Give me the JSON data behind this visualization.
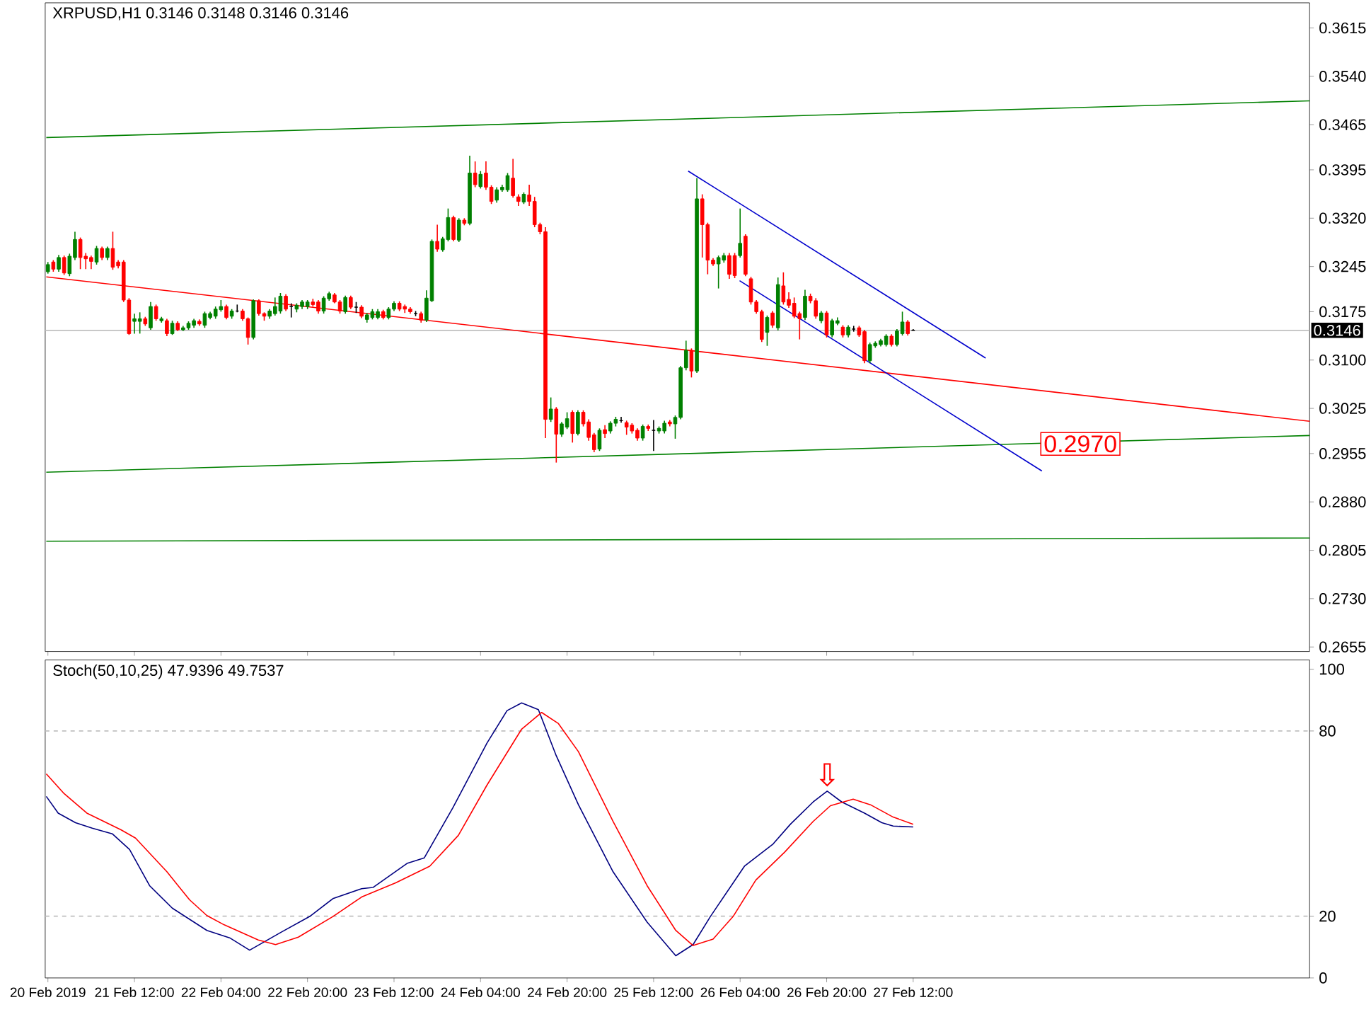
{
  "chart_data": [
    {
      "type": "candlestick",
      "title": "XRPUSD,H1 0.3146 0.3148 0.3146 0.3146",
      "x": [
        "2019-02-20T20:00",
        "2019-02-20T21:00",
        "2019-02-20T22:00",
        "2019-02-20T23:00",
        "2019-02-21T00:00",
        "2019-02-21T01:00",
        "2019-02-21T02:00",
        "2019-02-21T03:00",
        "2019-02-21T04:00",
        "2019-02-21T05:00",
        "2019-02-21T06:00",
        "2019-02-21T07:00",
        "2019-02-21T08:00",
        "2019-02-21T09:00",
        "2019-02-21T10:00",
        "2019-02-21T11:00",
        "2019-02-21T12:00",
        "2019-02-21T13:00",
        "2019-02-21T14:00",
        "2019-02-21T15:00",
        "2019-02-21T16:00",
        "2019-02-21T17:00",
        "2019-02-21T18:00",
        "2019-02-21T19:00",
        "2019-02-21T20:00",
        "2019-02-21T21:00",
        "2019-02-21T22:00",
        "2019-02-21T23:00",
        "2019-02-22T00:00",
        "2019-02-22T01:00",
        "2019-02-22T02:00",
        "2019-02-22T03:00",
        "2019-02-22T04:00",
        "2019-02-22T05:00",
        "2019-02-22T06:00",
        "2019-02-22T07:00",
        "2019-02-22T08:00",
        "2019-02-22T09:00",
        "2019-02-22T10:00",
        "2019-02-22T11:00",
        "2019-02-22T12:00",
        "2019-02-22T13:00",
        "2019-02-22T14:00",
        "2019-02-22T15:00",
        "2019-02-22T16:00",
        "2019-02-22T17:00",
        "2019-02-22T18:00",
        "2019-02-22T19:00",
        "2019-02-22T20:00",
        "2019-02-22T21:00",
        "2019-02-22T22:00",
        "2019-02-22T23:00",
        "2019-02-23T00:00",
        "2019-02-23T01:00",
        "2019-02-23T02:00",
        "2019-02-23T03:00",
        "2019-02-23T04:00",
        "2019-02-23T05:00",
        "2019-02-23T06:00",
        "2019-02-23T07:00",
        "2019-02-23T08:00",
        "2019-02-23T09:00",
        "2019-02-23T10:00",
        "2019-02-23T11:00",
        "2019-02-23T12:00",
        "2019-02-23T13:00",
        "2019-02-23T14:00",
        "2019-02-23T15:00",
        "2019-02-23T16:00",
        "2019-02-23T17:00",
        "2019-02-23T18:00",
        "2019-02-23T19:00",
        "2019-02-23T20:00",
        "2019-02-23T21:00",
        "2019-02-23T22:00",
        "2019-02-23T23:00",
        "2019-02-24T00:00",
        "2019-02-24T01:00",
        "2019-02-24T02:00",
        "2019-02-24T03:00",
        "2019-02-24T04:00",
        "2019-02-24T05:00",
        "2019-02-24T06:00",
        "2019-02-24T07:00",
        "2019-02-24T08:00",
        "2019-02-24T09:00",
        "2019-02-24T10:00",
        "2019-02-24T11:00",
        "2019-02-24T12:00",
        "2019-02-24T13:00",
        "2019-02-24T14:00",
        "2019-02-24T15:00",
        "2019-02-24T16:00",
        "2019-02-24T17:00",
        "2019-02-24T18:00",
        "2019-02-24T19:00",
        "2019-02-24T20:00",
        "2019-02-24T21:00",
        "2019-02-24T22:00",
        "2019-02-24T23:00",
        "2019-02-25T00:00",
        "2019-02-25T01:00",
        "2019-02-25T02:00",
        "2019-02-25T03:00",
        "2019-02-25T04:00",
        "2019-02-25T05:00",
        "2019-02-25T06:00",
        "2019-02-25T07:00",
        "2019-02-25T08:00",
        "2019-02-25T09:00",
        "2019-02-25T10:00",
        "2019-02-25T11:00",
        "2019-02-25T12:00",
        "2019-02-25T13:00",
        "2019-02-25T14:00",
        "2019-02-25T15:00",
        "2019-02-25T16:00",
        "2019-02-25T17:00",
        "2019-02-25T18:00",
        "2019-02-25T19:00",
        "2019-02-25T20:00",
        "2019-02-25T21:00",
        "2019-02-25T22:00",
        "2019-02-25T23:00",
        "2019-02-26T00:00",
        "2019-02-26T01:00",
        "2019-02-26T02:00",
        "2019-02-26T03:00",
        "2019-02-26T04:00",
        "2019-02-26T05:00",
        "2019-02-26T06:00",
        "2019-02-26T07:00",
        "2019-02-26T08:00",
        "2019-02-26T09:00",
        "2019-02-26T10:00",
        "2019-02-26T11:00",
        "2019-02-26T12:00",
        "2019-02-26T13:00",
        "2019-02-26T14:00",
        "2019-02-26T15:00",
        "2019-02-26T16:00",
        "2019-02-26T17:00",
        "2019-02-26T18:00",
        "2019-02-26T19:00",
        "2019-02-26T20:00",
        "2019-02-26T21:00",
        "2019-02-26T22:00",
        "2019-02-26T23:00",
        "2019-02-27T00:00",
        "2019-02-27T01:00",
        "2019-02-27T02:00",
        "2019-02-27T03:00",
        "2019-02-27T04:00",
        "2019-02-27T05:00",
        "2019-02-27T06:00",
        "2019-02-27T07:00",
        "2019-02-27T08:00",
        "2019-02-27T09:00",
        "2019-02-27T10:00",
        "2019-02-27T11:00",
        "2019-02-27T12:00"
      ],
      "ohlc": [
        [
          0.3237,
          0.3252,
          0.3234,
          0.3248
        ],
        [
          0.3252,
          0.3255,
          0.3237,
          0.3241
        ],
        [
          0.3241,
          0.3263,
          0.3237,
          0.3259
        ],
        [
          0.3259,
          0.3262,
          0.3232,
          0.3235
        ],
        [
          0.3234,
          0.3265,
          0.323,
          0.3261
        ],
        [
          0.3259,
          0.3299,
          0.3255,
          0.3287
        ],
        [
          0.3287,
          0.329,
          0.3241,
          0.3259
        ],
        [
          0.3261,
          0.3266,
          0.3241,
          0.3257
        ],
        [
          0.3259,
          0.3262,
          0.3241,
          0.3253
        ],
        [
          0.3252,
          0.3277,
          0.3248,
          0.3273
        ],
        [
          0.3273,
          0.3276,
          0.3255,
          0.3259
        ],
        [
          0.3259,
          0.3276,
          0.3255,
          0.3273
        ],
        [
          0.3273,
          0.3299,
          0.324,
          0.3244
        ],
        [
          0.3252,
          0.3255,
          0.3242,
          0.3246
        ],
        [
          0.3252,
          0.3255,
          0.319,
          0.3193
        ],
        [
          0.3193,
          0.3196,
          0.3139,
          0.3141
        ],
        [
          0.316,
          0.3172,
          0.3141,
          0.3164
        ],
        [
          0.316,
          0.3174,
          0.3141,
          0.3164
        ],
        [
          0.3164,
          0.3167,
          0.3153,
          0.3156
        ],
        [
          0.315,
          0.319,
          0.3147,
          0.3183
        ],
        [
          0.3183,
          0.3186,
          0.3161,
          0.3164
        ],
        [
          0.3161,
          0.3167,
          0.3158,
          0.3164
        ],
        [
          0.3161,
          0.3164,
          0.3137,
          0.3141
        ],
        [
          0.3141,
          0.3161,
          0.3139,
          0.3157
        ],
        [
          0.3157,
          0.316,
          0.3145,
          0.3147
        ],
        [
          0.3147,
          0.3153,
          0.3145,
          0.315
        ],
        [
          0.315,
          0.316,
          0.3147,
          0.3157
        ],
        [
          0.3154,
          0.3164,
          0.315,
          0.3161
        ],
        [
          0.316,
          0.3163,
          0.3153,
          0.3156
        ],
        [
          0.3154,
          0.3175,
          0.315,
          0.3172
        ],
        [
          0.3166,
          0.3175,
          0.3163,
          0.3172
        ],
        [
          0.3168,
          0.3183,
          0.3164,
          0.3179
        ],
        [
          0.3178,
          0.3193,
          0.3175,
          0.3183
        ],
        [
          0.3183,
          0.3186,
          0.3163,
          0.3166
        ],
        [
          0.3168,
          0.3179,
          0.3164,
          0.3176
        ],
        [
          0.3176,
          0.3186,
          0.3174,
          0.3176
        ],
        [
          0.3176,
          0.3179,
          0.3161,
          0.3164
        ],
        [
          0.3164,
          0.3166,
          0.3124,
          0.3135
        ],
        [
          0.3135,
          0.3194,
          0.3132,
          0.3192
        ],
        [
          0.3192,
          0.3194,
          0.3169,
          0.3172
        ],
        [
          0.3172,
          0.3174,
          0.3161,
          0.3168
        ],
        [
          0.3168,
          0.3179,
          0.3164,
          0.3176
        ],
        [
          0.3172,
          0.3197,
          0.3169,
          0.3183
        ],
        [
          0.3176,
          0.3204,
          0.3172,
          0.3199
        ],
        [
          0.3199,
          0.3202,
          0.3176,
          0.3179
        ],
        [
          0.3183,
          0.3188,
          0.3166,
          0.3183
        ],
        [
          0.3179,
          0.3188,
          0.3174,
          0.3185
        ],
        [
          0.3183,
          0.3193,
          0.3179,
          0.319
        ],
        [
          0.3183,
          0.3193,
          0.3179,
          0.319
        ],
        [
          0.319,
          0.3195,
          0.3183,
          0.3186
        ],
        [
          0.319,
          0.3193,
          0.3172,
          0.3176
        ],
        [
          0.3176,
          0.3199,
          0.3172,
          0.3196
        ],
        [
          0.3195,
          0.3206,
          0.3192,
          0.3203
        ],
        [
          0.3201,
          0.3204,
          0.3188,
          0.319
        ],
        [
          0.319,
          0.3193,
          0.3172,
          0.3176
        ],
        [
          0.3175,
          0.32,
          0.3172,
          0.3197
        ],
        [
          0.3197,
          0.32,
          0.3179,
          0.3182
        ],
        [
          0.3182,
          0.319,
          0.3173,
          0.3182
        ],
        [
          0.3182,
          0.3185,
          0.3165,
          0.3168
        ],
        [
          0.3163,
          0.3173,
          0.3158,
          0.317
        ],
        [
          0.3166,
          0.3179,
          0.3163,
          0.3175
        ],
        [
          0.3166,
          0.3179,
          0.3163,
          0.3175
        ],
        [
          0.3175,
          0.3178,
          0.3163,
          0.3166
        ],
        [
          0.3166,
          0.3182,
          0.3163,
          0.3179
        ],
        [
          0.3179,
          0.3191,
          0.3176,
          0.3188
        ],
        [
          0.3188,
          0.3191,
          0.3176,
          0.3179
        ],
        [
          0.3183,
          0.3186,
          0.3173,
          0.3179
        ],
        [
          0.3179,
          0.3182,
          0.3172,
          0.3175
        ],
        [
          0.3172,
          0.3176,
          0.3168,
          0.3172
        ],
        [
          0.3172,
          0.3175,
          0.3158,
          0.3162
        ],
        [
          0.3162,
          0.3208,
          0.3159,
          0.3196
        ],
        [
          0.3192,
          0.3287,
          0.319,
          0.3284
        ],
        [
          0.3284,
          0.331,
          0.3268,
          0.3272
        ],
        [
          0.3271,
          0.3291,
          0.3268,
          0.3288
        ],
        [
          0.3287,
          0.3335,
          0.3284,
          0.3321
        ],
        [
          0.3321,
          0.3324,
          0.3284,
          0.3287
        ],
        [
          0.3286,
          0.332,
          0.3283,
          0.3317
        ],
        [
          0.3317,
          0.332,
          0.3309,
          0.3312
        ],
        [
          0.3312,
          0.3417,
          0.3309,
          0.339
        ],
        [
          0.339,
          0.3408,
          0.3368,
          0.3372
        ],
        [
          0.3369,
          0.3393,
          0.3366,
          0.3388
        ],
        [
          0.339,
          0.3408,
          0.3364,
          0.3368
        ],
        [
          0.3368,
          0.3371,
          0.3342,
          0.3346
        ],
        [
          0.3348,
          0.3368,
          0.3344,
          0.3364
        ],
        [
          0.3364,
          0.3372,
          0.3361,
          0.3368
        ],
        [
          0.3364,
          0.339,
          0.3361,
          0.3386
        ],
        [
          0.3382,
          0.3412,
          0.3352,
          0.3355
        ],
        [
          0.3353,
          0.3357,
          0.3339,
          0.3346
        ],
        [
          0.3345,
          0.336,
          0.3342,
          0.3357
        ],
        [
          0.3356,
          0.3372,
          0.3339,
          0.3346
        ],
        [
          0.3346,
          0.3353,
          0.3306,
          0.331
        ],
        [
          0.331,
          0.3313,
          0.3295,
          0.3299
        ],
        [
          0.3299,
          0.3306,
          0.2979,
          0.3008
        ],
        [
          0.3008,
          0.3042,
          0.3004,
          0.3024
        ],
        [
          0.3024,
          0.3027,
          0.2941,
          0.2985
        ],
        [
          0.2985,
          0.3004,
          0.2981,
          0.3001
        ],
        [
          0.2996,
          0.3019,
          0.2993,
          0.3009
        ],
        [
          0.3019,
          0.3022,
          0.2972,
          0.2986
        ],
        [
          0.2986,
          0.3022,
          0.2983,
          0.3019
        ],
        [
          0.3019,
          0.3022,
          0.2997,
          0.3001
        ],
        [
          0.3004,
          0.3008,
          0.2975,
          0.298
        ],
        [
          0.2984,
          0.2987,
          0.2957,
          0.2961
        ],
        [
          0.2962,
          0.2994,
          0.2959,
          0.2991
        ],
        [
          0.2992,
          0.2999,
          0.2979,
          0.2986
        ],
        [
          0.299,
          0.3005,
          0.2986,
          0.3002
        ],
        [
          0.3002,
          0.3012,
          0.2997,
          0.3008
        ],
        [
          0.3006,
          0.3012,
          0.3003,
          0.3006
        ],
        [
          0.3003,
          0.3006,
          0.2984,
          0.2996
        ],
        [
          0.2999,
          0.3002,
          0.2986,
          0.299
        ],
        [
          0.2991,
          0.2994,
          0.2975,
          0.2979
        ],
        [
          0.2979,
          0.3,
          0.2975,
          0.2997
        ],
        [
          0.2997,
          0.3,
          0.299,
          0.2994
        ],
        [
          0.2991,
          0.3007,
          0.2959,
          0.2991
        ],
        [
          0.299,
          0.2997,
          0.2986,
          0.2994
        ],
        [
          0.299,
          0.3006,
          0.2986,
          0.3002
        ],
        [
          0.3004,
          0.3007,
          0.2997,
          0.3001
        ],
        [
          0.3001,
          0.3014,
          0.2978,
          0.3011
        ],
        [
          0.3011,
          0.3091,
          0.3008,
          0.3088
        ],
        [
          0.3088,
          0.313,
          0.3084,
          0.3115
        ],
        [
          0.3115,
          0.3118,
          0.3073,
          0.3083
        ],
        [
          0.3083,
          0.3382,
          0.308,
          0.335
        ],
        [
          0.335,
          0.3357,
          0.3259,
          0.331
        ],
        [
          0.331,
          0.3313,
          0.3233,
          0.3255
        ],
        [
          0.3255,
          0.3258,
          0.3246,
          0.3249
        ],
        [
          0.3249,
          0.3262,
          0.3211,
          0.3259
        ],
        [
          0.3255,
          0.3266,
          0.3251,
          0.3262
        ],
        [
          0.3262,
          0.3266,
          0.3226,
          0.3233
        ],
        [
          0.3262,
          0.3266,
          0.3227,
          0.3231
        ],
        [
          0.3262,
          0.3335,
          0.3259,
          0.3281
        ],
        [
          0.3292,
          0.3295,
          0.323,
          0.3233
        ],
        [
          0.3226,
          0.3229,
          0.3186,
          0.319
        ],
        [
          0.319,
          0.3193,
          0.3172,
          0.3175
        ],
        [
          0.3175,
          0.3178,
          0.3128,
          0.3132
        ],
        [
          0.3143,
          0.3169,
          0.3122,
          0.3166
        ],
        [
          0.3173,
          0.3176,
          0.315,
          0.3154
        ],
        [
          0.315,
          0.3228,
          0.3146,
          0.3217
        ],
        [
          0.3215,
          0.3236,
          0.3186,
          0.319
        ],
        [
          0.3194,
          0.3205,
          0.3181,
          0.3185
        ],
        [
          0.3188,
          0.3197,
          0.3165,
          0.3168
        ],
        [
          0.3172,
          0.3175,
          0.3132,
          0.3164
        ],
        [
          0.3166,
          0.3209,
          0.3162,
          0.3199
        ],
        [
          0.3199,
          0.3203,
          0.3188,
          0.3192
        ],
        [
          0.3192,
          0.3196,
          0.3164,
          0.3168
        ],
        [
          0.3161,
          0.3176,
          0.3157,
          0.3173
        ],
        [
          0.3173,
          0.3176,
          0.3135,
          0.3139
        ],
        [
          0.3139,
          0.3164,
          0.3135,
          0.3161
        ],
        [
          0.3157,
          0.3166,
          0.3154,
          0.3161
        ],
        [
          0.3151,
          0.3154,
          0.3135,
          0.3139
        ],
        [
          0.3139,
          0.3154,
          0.3135,
          0.3151
        ],
        [
          0.3148,
          0.3153,
          0.3144,
          0.3148
        ],
        [
          0.315,
          0.3153,
          0.3136,
          0.3139
        ],
        [
          0.3144,
          0.3147,
          0.3095,
          0.3099
        ],
        [
          0.3099,
          0.3127,
          0.3095,
          0.3124
        ],
        [
          0.3122,
          0.3129,
          0.3119,
          0.3126
        ],
        [
          0.3124,
          0.3133,
          0.3121,
          0.313
        ],
        [
          0.3124,
          0.314,
          0.3121,
          0.3137
        ],
        [
          0.3137,
          0.314,
          0.3121,
          0.3124
        ],
        [
          0.3124,
          0.3148,
          0.3121,
          0.3145
        ],
        [
          0.3141,
          0.3175,
          0.3138,
          0.3159
        ],
        [
          0.3159,
          0.3162,
          0.3138,
          0.3141
        ],
        [
          0.3146,
          0.3148,
          0.3146,
          0.3146
        ]
      ],
      "colors": [
        "#008000",
        "#ff0000",
        "#008000",
        "#ff0000",
        "#008000",
        "#008000",
        "#ff0000",
        "#ff0000",
        "#ff0000",
        "#008000",
        "#ff0000",
        "#008000",
        "#ff0000",
        "#ff0000",
        "#ff0000",
        "#ff0000",
        "#008000",
        "#008000",
        "#ff0000",
        "#008000",
        "#ff0000",
        "#008000",
        "#ff0000",
        "#008000",
        "#ff0000",
        "#008000",
        "#008000",
        "#008000",
        "#ff0000",
        "#008000",
        "#008000",
        "#008000",
        "#008000",
        "#ff0000",
        "#008000",
        "#000000",
        "#ff0000",
        "#ff0000",
        "#008000",
        "#ff0000",
        "#ff0000",
        "#008000",
        "#008000",
        "#008000",
        "#ff0000",
        "#000000",
        "#008000",
        "#008000",
        "#008000",
        "#ff0000",
        "#ff0000",
        "#008000",
        "#008000",
        "#ff0000",
        "#ff0000",
        "#008000",
        "#ff0000",
        "#000000",
        "#ff0000",
        "#008000",
        "#008000",
        "#008000",
        "#ff0000",
        "#008000",
        "#008000",
        "#ff0000",
        "#ff0000",
        "#ff0000",
        "#000000",
        "#ff0000",
        "#008000",
        "#008000",
        "#ff0000",
        "#008000",
        "#008000",
        "#ff0000",
        "#008000",
        "#ff0000",
        "#008000",
        "#ff0000",
        "#008000",
        "#ff0000",
        "#ff0000",
        "#008000",
        "#008000",
        "#008000",
        "#ff0000",
        "#ff0000",
        "#008000",
        "#ff0000",
        "#ff0000",
        "#ff0000",
        "#ff0000",
        "#008000",
        "#ff0000",
        "#008000",
        "#008000",
        "#ff0000",
        "#008000",
        "#ff0000",
        "#ff0000",
        "#ff0000",
        "#008000",
        "#ff0000",
        "#008000",
        "#008000",
        "#000000",
        "#ff0000",
        "#ff0000",
        "#ff0000",
        "#008000",
        "#ff0000",
        "#000000",
        "#008000",
        "#008000",
        "#ff0000",
        "#008000",
        "#008000",
        "#008000",
        "#ff0000",
        "#008000",
        "#ff0000",
        "#ff0000",
        "#ff0000",
        "#008000",
        "#008000",
        "#ff0000",
        "#ff0000",
        "#008000",
        "#ff0000",
        "#ff0000",
        "#ff0000",
        "#ff0000",
        "#008000",
        "#ff0000",
        "#008000",
        "#ff0000",
        "#ff0000",
        "#ff0000",
        "#ff0000",
        "#008000",
        "#ff0000",
        "#ff0000",
        "#008000",
        "#ff0000",
        "#008000",
        "#008000",
        "#ff0000",
        "#008000",
        "#000000",
        "#ff0000",
        "#ff0000",
        "#008000",
        "#008000",
        "#008000",
        "#008000",
        "#ff0000",
        "#008000",
        "#008000",
        "#ff0000",
        "#000000"
      ],
      "series": [
        {
          "type": "line",
          "color": "#008000",
          "x": [
            "2019-02-20T19:42",
            "2019-03-02T13:18"
          ],
          "values": [
            0.3445,
            0.3502
          ]
        },
        {
          "type": "line",
          "color": "#ff0000",
          "x": [
            "2019-02-20T19:42",
            "2019-03-02T13:18"
          ],
          "values": [
            0.3229,
            0.3005
          ]
        },
        {
          "type": "line",
          "color": "#008000",
          "x": [
            "2019-02-20T19:42",
            "2019-03-02T13:18"
          ],
          "values": [
            0.2926,
            0.2983
          ]
        },
        {
          "type": "line",
          "color": "#008000",
          "x": [
            "2019-02-20T19:42",
            "2019-03-02T13:18"
          ],
          "values": [
            0.2819,
            0.2824
          ]
        },
        {
          "type": "line",
          "color": "#0000cd",
          "x": [
            "2019-02-25T18:24",
            "2019-02-28T01:24"
          ],
          "values": [
            0.3393,
            0.3103
          ]
        },
        {
          "type": "line",
          "color": "#0000cd",
          "x": [
            "2019-02-26T03:54",
            "2019-02-28T11:48"
          ],
          "values": [
            0.3223,
            0.2928
          ]
        }
      ],
      "xlim": [
        "2019-02-20T19:30",
        "2019-03-02T13:18"
      ],
      "ylim": [
        0.2648,
        0.3654
      ],
      "yticks": [
        {
          "value": 0.2655,
          "label": "0.2655"
        },
        {
          "value": 0.273,
          "label": "0.2730"
        },
        {
          "value": 0.2805,
          "label": "0.2805"
        },
        {
          "value": 0.288,
          "label": "0.2880"
        },
        {
          "value": 0.2955,
          "label": "0.2955"
        },
        {
          "value": 0.3025,
          "label": "0.3025"
        },
        {
          "value": 0.31,
          "label": "0.3100"
        },
        {
          "value": 0.3175,
          "label": "0.3175"
        },
        {
          "value": 0.3245,
          "label": "0.3245"
        },
        {
          "value": 0.332,
          "label": "0.3320"
        },
        {
          "value": 0.3395,
          "label": "0.3395"
        },
        {
          "value": 0.3465,
          "label": "0.3465"
        },
        {
          "value": 0.354,
          "label": "0.3540"
        },
        {
          "value": 0.3615,
          "label": "0.3615"
        }
      ],
      "xticks": [
        {
          "value": "2019-02-20T20:00",
          "label": null
        },
        {
          "value": "2019-02-21T12:00",
          "label": null
        },
        {
          "value": "2019-02-22T04:00",
          "label": null
        },
        {
          "value": "2019-02-22T20:00",
          "label": null
        },
        {
          "value": "2019-02-23T12:00",
          "label": null
        },
        {
          "value": "2019-02-24T04:00",
          "label": null
        },
        {
          "value": "2019-02-24T20:00",
          "label": null
        },
        {
          "value": "2019-02-25T12:00",
          "label": null
        },
        {
          "value": "2019-02-26T04:00",
          "label": null
        },
        {
          "value": "2019-02-26T20:00",
          "label": null
        },
        {
          "value": "2019-02-27T12:00",
          "label": null
        }
      ],
      "tick_labels": "y",
      "ref_lines": [
        {
          "axis": "y",
          "value": 0.3146,
          "label": "0.3146",
          "color": "#c0c0c0",
          "line_style": "solid"
        }
      ],
      "annotations": [
        {
          "text": "0.2970",
          "x": "2019-02-28T11:30",
          "y": 0.297
        }
      ]
    },
    {
      "type": "line",
      "title": "Stoch(50,10,25) 47.9396 49.7537",
      "series": [
        {
          "color": "#000080",
          "x": [
            "2019-02-20T19:42",
            "2019-02-20T21:54",
            "2019-02-21T01:06",
            "2019-02-21T04:12",
            "2019-02-21T07:54",
            "2019-02-21T11:06",
            "2019-02-21T14:48",
            "2019-02-21T19:00",
            "2019-02-22T01:24",
            "2019-02-22T05:36",
            "2019-02-22T09:18",
            "2019-02-22T15:06",
            "2019-02-22T20:24",
            "2019-02-23T00:42",
            "2019-02-23T06:00",
            "2019-02-23T08:06",
            "2019-02-23T14:24",
            "2019-02-23T17:36",
            "2019-02-23T22:54",
            "2019-02-24T05:12",
            "2019-02-24T08:54",
            "2019-02-24T11:36",
            "2019-02-24T14:42",
            "2019-02-24T17:54",
            "2019-02-24T22:06",
            "2019-02-25T04:30",
            "2019-02-25T10:48",
            "2019-02-25T16:06",
            "2019-02-25T19:18",
            "2019-02-25T22:30",
            "2019-02-26T04:48",
            "2019-02-26T10:06",
            "2019-02-26T13:18",
            "2019-02-26T17:30",
            "2019-02-26T20:06",
            "2019-02-26T22:48",
            "2019-02-27T03:00",
            "2019-02-27T06:12",
            "2019-02-27T08:18",
            "2019-02-27T12:00"
          ],
          "values": [
            58.8,
            53.4,
            50.3,
            48.5,
            46.7,
            41.6,
            29.9,
            22.6,
            15.4,
            13.0,
            9.0,
            14.8,
            19.9,
            25.7,
            28.9,
            29.3,
            37.1,
            38.9,
            55.2,
            76.1,
            86.6,
            89.1,
            86.9,
            72.4,
            56.1,
            34.4,
            18.1,
            7.2,
            10.8,
            19.9,
            36.2,
            43.4,
            49.8,
            57.0,
            60.5,
            57.0,
            53.4,
            50.3,
            49.2,
            48.9
          ]
        },
        {
          "color": "#ff0000",
          "x": [
            "2019-02-20T19:42",
            "2019-02-20T23:00",
            "2019-02-21T03:12",
            "2019-02-21T09:30",
            "2019-02-21T12:12",
            "2019-02-21T18:00",
            "2019-02-21T22:12",
            "2019-02-22T01:24",
            "2019-02-22T04:36",
            "2019-02-22T10:54",
            "2019-02-22T14:06",
            "2019-02-22T18:18",
            "2019-02-23T00:42",
            "2019-02-23T06:00",
            "2019-02-23T12:18",
            "2019-02-23T18:36",
            "2019-02-23T23:54",
            "2019-02-24T05:12",
            "2019-02-24T11:36",
            "2019-02-24T15:18",
            "2019-02-24T18:24",
            "2019-02-24T22:06",
            "2019-02-25T04:30",
            "2019-02-25T10:48",
            "2019-02-25T16:06",
            "2019-02-25T19:18",
            "2019-02-25T23:00",
            "2019-02-26T02:42",
            "2019-02-26T06:54",
            "2019-02-26T12:12",
            "2019-02-26T17:30",
            "2019-02-26T20:42",
            "2019-02-27T00:54",
            "2019-02-27T04:06",
            "2019-02-27T08:18",
            "2019-02-27T12:00"
          ],
          "values": [
            66.1,
            59.7,
            53.4,
            48.0,
            45.3,
            34.4,
            25.3,
            20.2,
            17.2,
            12.3,
            10.8,
            13.2,
            19.9,
            26.2,
            30.8,
            36.2,
            46.2,
            62.5,
            80.6,
            86.0,
            82.4,
            73.3,
            50.7,
            29.9,
            15.4,
            10.5,
            12.6,
            19.9,
            31.7,
            40.7,
            50.7,
            55.8,
            57.9,
            56.1,
            52.1,
            49.8
          ]
        }
      ],
      "xlim": [
        "2019-02-20T19:30",
        "2019-03-02T13:18"
      ],
      "ylim": [
        0,
        103
      ],
      "xticks": [
        {
          "value": "2019-02-20T20:00",
          "label": "20 Feb 2019"
        },
        {
          "value": "2019-02-21T12:00",
          "label": "21 Feb 12:00"
        },
        {
          "value": "2019-02-22T04:00",
          "label": "22 Feb 04:00"
        },
        {
          "value": "2019-02-22T20:00",
          "label": "22 Feb 20:00"
        },
        {
          "value": "2019-02-23T12:00",
          "label": "23 Feb 12:00"
        },
        {
          "value": "2019-02-24T04:00",
          "label": "24 Feb 04:00"
        },
        {
          "value": "2019-02-24T20:00",
          "label": "24 Feb 20:00"
        },
        {
          "value": "2019-02-25T12:00",
          "label": "25 Feb 12:00"
        },
        {
          "value": "2019-02-26T04:00",
          "label": "26 Feb 04:00"
        },
        {
          "value": "2019-02-26T20:00",
          "label": "26 Feb 20:00"
        },
        {
          "value": "2019-02-27T12:00",
          "label": "27 Feb 12:00"
        }
      ],
      "yticks": [
        0,
        20,
        80,
        100
      ],
      "ref_lines": [
        {
          "axis": "y",
          "value": 80,
          "color": "#c0c0c0",
          "line_style": "dashed"
        },
        {
          "axis": "y",
          "value": 20,
          "color": "#c0c0c0",
          "line_style": "dashed"
        }
      ],
      "annotations": [
        {
          "text": "⇩",
          "x": "2019-02-26T20:06",
          "y": 60.5
        }
      ]
    }
  ]
}
